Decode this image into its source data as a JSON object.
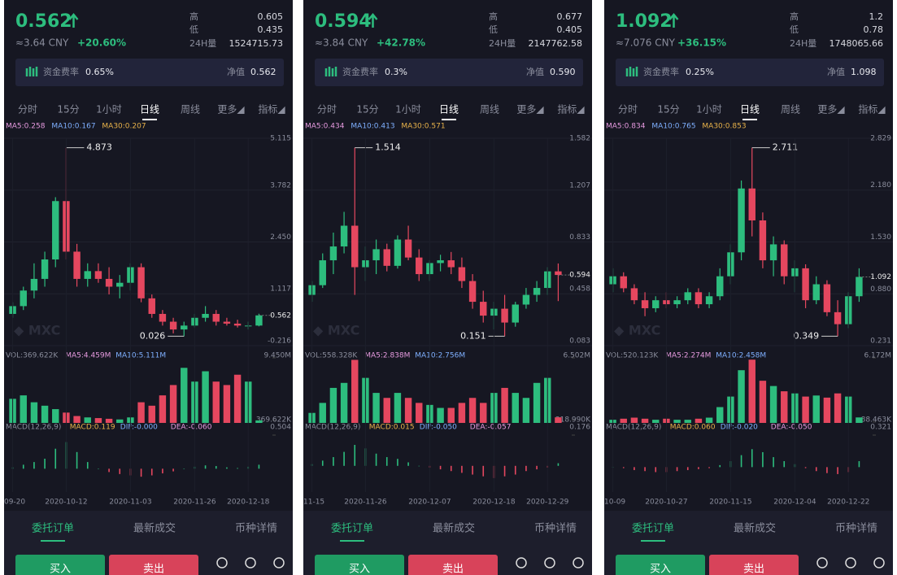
{
  "panels": [
    {
      "price": "0.562",
      "cny": "≈3.64 CNY",
      "change": "+20.60%",
      "high_label": "高",
      "high": "0.605",
      "low_label": "低",
      "low": "0.435",
      "vol_label": "24H量",
      "vol": "1524715.73",
      "funding_label": "资金费率",
      "funding": "0.65%",
      "nav_label": "净值",
      "nav": "0.562",
      "tabs": [
        "分时",
        "15分",
        "1小时",
        "日线",
        "周线",
        "更多◢",
        "指标◢"
      ],
      "bottom_tabs": [
        "委托订单",
        "最新成交",
        "币种详情"
      ],
      "buy": "买入",
      "sell": "卖出"
    },
    {
      "price": "0.594",
      "cny": "≈3.84 CNY",
      "change": "+42.78%",
      "high_label": "高",
      "high": "0.677",
      "low_label": "低",
      "low": "0.405",
      "vol_label": "24H量",
      "vol": "2147762.58",
      "funding_label": "资金费率",
      "funding": "0.3%",
      "nav_label": "净值",
      "nav": "0.590",
      "tabs": [
        "分时",
        "15分",
        "1小时",
        "日线",
        "周线",
        "更多◢",
        "指标◢"
      ],
      "bottom_tabs": [
        "委托订单",
        "最新成交",
        "币种详情"
      ],
      "buy": "买入",
      "sell": "卖出"
    },
    {
      "price": "1.092",
      "cny": "≈7.076 CNY",
      "change": "+36.15%",
      "high_label": "高",
      "high": "1.2",
      "low_label": "低",
      "low": "0.78",
      "vol_label": "24H量",
      "vol": "1748065.66",
      "funding_label": "资金费率",
      "funding": "0.25%",
      "nav_label": "净值",
      "nav": "1.098",
      "tabs": [
        "分时",
        "15分",
        "1小时",
        "日线",
        "周线",
        "更多◢",
        "指标◢"
      ],
      "bottom_tabs": [
        "委托订单",
        "最新成交",
        "币种详情"
      ],
      "buy": "买入",
      "sell": "卖出"
    }
  ],
  "chart_data": [
    {
      "type": "candlestick",
      "ma_legend": [
        "MA5:0.258",
        "MA10:0.167",
        "MA30:0.207"
      ],
      "open": [
        0.6,
        0.8,
        1.2,
        1.5,
        2.0,
        3.5,
        2.2,
        1.5,
        1.7,
        1.5,
        1.3,
        1.4,
        1.8,
        1.0,
        0.6,
        0.4,
        0.2,
        0.3,
        0.5,
        0.6,
        0.4,
        0.35,
        0.3,
        0.3
      ],
      "high": [
        0.9,
        1.3,
        1.9,
        2.2,
        3.6,
        4.873,
        2.4,
        1.9,
        1.9,
        1.8,
        1.6,
        1.9,
        1.9,
        1.1,
        0.7,
        0.5,
        0.4,
        0.6,
        0.8,
        0.7,
        0.5,
        0.45,
        0.4,
        0.605
      ],
      "low": [
        0.5,
        0.7,
        1.0,
        1.3,
        1.8,
        2.0,
        1.3,
        1.3,
        1.4,
        1.1,
        1.0,
        1.2,
        0.9,
        0.5,
        0.3,
        0.1,
        0.026,
        0.25,
        0.4,
        0.3,
        0.3,
        0.25,
        0.2,
        0.28
      ],
      "close": [
        0.8,
        1.2,
        1.5,
        2.0,
        3.5,
        2.2,
        1.5,
        1.7,
        1.5,
        1.3,
        1.4,
        1.8,
        1.0,
        0.6,
        0.4,
        0.2,
        0.3,
        0.5,
        0.6,
        0.4,
        0.35,
        0.3,
        0.3,
        0.562
      ],
      "max_index": 5,
      "min_index": 16,
      "ylim": [
        -0.216,
        5.115
      ],
      "yticks": [
        5.115,
        3.782,
        {
          "value": 2.45,
          "label": "2.450"
        },
        1.117,
        -0.216
      ],
      "xlim": [
        -0.5,
        23.5
      ],
      "xticks": [
        {
          "value": 0,
          "label": "09-20"
        },
        {
          "value": 5,
          "label": "2020-10-12"
        },
        {
          "value": 11,
          "label": "2020-11-03"
        },
        {
          "value": 17,
          "label": "2020-11-26"
        },
        {
          "value": 22,
          "label": "2020-12-18"
        }
      ],
      "volume": {
        "legend": [
          "VOL:369.622K",
          "MA5:4.459M",
          "MA10:5.111M"
        ],
        "values": [
          3500000,
          4000000,
          3000000,
          2500000,
          2000000,
          1500000,
          1000000,
          800000,
          700000,
          600000,
          500000,
          800000,
          3000000,
          2500000,
          4000000,
          5500000,
          8000000,
          6000000,
          7500000,
          6000000,
          5500000,
          7000000,
          6000000,
          369622
        ],
        "ylim": [
          0,
          9450000
        ],
        "yticks": [
          {
            "value": 9450000,
            "label": "9.450M"
          },
          {
            "value": 369622,
            "label": "369.622K"
          }
        ]
      },
      "macd": {
        "legend": [
          "MACD(12,26,9)",
          "MACD:0.119",
          "DIF:-0.000",
          "DEA:-0.060"
        ],
        "values": [
          0.02,
          0.06,
          0.1,
          0.15,
          0.3,
          0.4,
          0.25,
          0.1,
          0,
          -0.05,
          -0.08,
          -0.1,
          -0.12,
          -0.1,
          -0.07,
          -0.04,
          0,
          0.03,
          0.05,
          0.04,
          0.02,
          0.01,
          0.03,
          0.06
        ],
        "ylim": [
          -0.35,
          0.504
        ],
        "yticks": [
          0.504
        ]
      }
    },
    {
      "type": "candlestick",
      "ma_legend": [
        "MA5:0.434",
        "MA10:0.413",
        "MA30:0.571"
      ],
      "open": [
        0.45,
        0.52,
        0.7,
        0.8,
        0.95,
        0.65,
        0.7,
        0.78,
        0.66,
        0.85,
        0.72,
        0.6,
        0.68,
        0.7,
        0.65,
        0.55,
        0.4,
        0.3,
        0.35,
        0.25,
        0.38,
        0.45,
        0.5,
        0.62
      ],
      "high": [
        0.55,
        0.75,
        0.9,
        1.05,
        1.514,
        0.8,
        0.85,
        0.82,
        0.88,
        0.95,
        0.78,
        0.7,
        0.74,
        0.76,
        0.72,
        0.6,
        0.48,
        0.4,
        0.45,
        0.4,
        0.5,
        0.55,
        0.65,
        0.677
      ],
      "low": [
        0.4,
        0.5,
        0.6,
        0.75,
        0.45,
        0.55,
        0.6,
        0.62,
        0.64,
        0.7,
        0.55,
        0.55,
        0.62,
        0.6,
        0.5,
        0.35,
        0.25,
        0.2,
        0.151,
        0.22,
        0.35,
        0.4,
        0.45,
        0.405
      ],
      "close": [
        0.52,
        0.7,
        0.8,
        0.95,
        0.65,
        0.7,
        0.78,
        0.66,
        0.85,
        0.72,
        0.6,
        0.68,
        0.7,
        0.65,
        0.55,
        0.4,
        0.3,
        0.35,
        0.25,
        0.38,
        0.45,
        0.5,
        0.62,
        0.594
      ],
      "max_index": 4,
      "min_index": 18,
      "ylim": [
        0.083,
        1.582
      ],
      "yticks": [
        1.582,
        1.207,
        0.833,
        0.458,
        0.083
      ],
      "xlim": [
        -0.5,
        23.5
      ],
      "xticks": [
        {
          "value": 0,
          "label": "11-15"
        },
        {
          "value": 5,
          "label": "2020-11-26"
        },
        {
          "value": 11,
          "label": "2020-12-07"
        },
        {
          "value": 17,
          "label": "2020-12-18"
        },
        {
          "value": 22,
          "label": "2020-12-29"
        }
      ],
      "volume": {
        "legend": [
          "VOL:558.328K",
          "MA5:2.838M",
          "MA10:2.756M"
        ],
        "values": [
          1000000,
          2000000,
          3500000,
          4000000,
          6300000,
          4500000,
          3000000,
          2500000,
          3000000,
          2500000,
          2000000,
          1800000,
          1500000,
          1500000,
          2000000,
          2500000,
          2000000,
          3000000,
          3500000,
          3000000,
          2500000,
          4000000,
          4500000,
          558328
        ],
        "ylim": [
          0,
          6502000
        ],
        "yticks": [
          {
            "value": 6502000,
            "label": "6.502M"
          },
          {
            "value": 318990,
            "label": "318.990K"
          }
        ]
      },
      "macd": {
        "legend": [
          "MACD(12,26,9)",
          "MACD:0.015",
          "DIF:-0.050",
          "DEA:-0.057"
        ],
        "values": [
          0.01,
          0.03,
          0.05,
          0.08,
          0.12,
          0.1,
          0.07,
          0.05,
          0.04,
          0.02,
          0,
          -0.01,
          -0.02,
          -0.03,
          -0.04,
          -0.05,
          -0.06,
          -0.07,
          -0.06,
          -0.05,
          -0.03,
          -0.02,
          -0.01,
          0.015
        ],
        "ylim": [
          -0.15,
          0.176
        ],
        "yticks": [
          0.176
        ]
      }
    },
    {
      "type": "candlestick",
      "ma_legend": [
        "MA5:0.834",
        "MA10:0.765",
        "MA30:0.853"
      ],
      "open": [
        1.0,
        1.1,
        0.95,
        0.8,
        0.7,
        0.8,
        0.75,
        0.8,
        0.9,
        0.75,
        0.85,
        1.1,
        1.4,
        2.2,
        1.8,
        1.3,
        1.5,
        1.1,
        1.2,
        0.8,
        1.0,
        0.65,
        0.5,
        0.85
      ],
      "high": [
        1.2,
        1.15,
        1.0,
        0.9,
        0.85,
        0.9,
        0.85,
        0.95,
        0.95,
        0.9,
        1.2,
        1.5,
        2.3,
        2.711,
        1.9,
        1.6,
        1.55,
        1.3,
        1.25,
        1.1,
        1.05,
        0.8,
        0.9,
        1.2
      ],
      "low": [
        0.9,
        0.9,
        0.75,
        0.6,
        0.65,
        0.7,
        0.7,
        0.75,
        0.7,
        0.7,
        0.8,
        1.0,
        1.3,
        1.6,
        1.2,
        1.1,
        1.0,
        0.9,
        0.7,
        0.75,
        0.6,
        0.349,
        0.45,
        0.78
      ],
      "close": [
        1.1,
        0.95,
        0.8,
        0.7,
        0.8,
        0.75,
        0.8,
        0.9,
        0.75,
        0.85,
        1.1,
        1.4,
        2.2,
        1.8,
        1.3,
        1.5,
        1.1,
        1.2,
        0.8,
        1.0,
        0.65,
        0.5,
        0.85,
        1.092
      ],
      "max_index": 13,
      "min_index": 21,
      "ylim": [
        0.231,
        2.829
      ],
      "yticks": [
        2.829,
        {
          "value": 2.18,
          "label": "2.180"
        },
        {
          "value": 1.53,
          "label": "1.530"
        },
        {
          "value": 0.88,
          "label": "0.880"
        },
        0.231
      ],
      "xlim": [
        -0.5,
        23.5
      ],
      "xticks": [
        {
          "value": 0,
          "label": "10-09"
        },
        {
          "value": 5,
          "label": "2020-10-27"
        },
        {
          "value": 11,
          "label": "2020-11-15"
        },
        {
          "value": 17,
          "label": "2020-12-04"
        },
        {
          "value": 22,
          "label": "2020-12-22"
        }
      ],
      "volume": {
        "legend": [
          "VOL:520.123K",
          "MA5:2.274M",
          "MA10:2.458M"
        ],
        "values": [
          300000,
          400000,
          500000,
          400000,
          300000,
          400000,
          300000,
          300000,
          400000,
          500000,
          1500000,
          2500000,
          5000000,
          6000000,
          4000000,
          3500000,
          3000000,
          2800000,
          2500000,
          2600000,
          2400000,
          2800000,
          2500000,
          520123
        ],
        "ylim": [
          0,
          6172000
        ],
        "yticks": [
          {
            "value": 6172000,
            "label": "6.172M"
          },
          {
            "value": 88463,
            "label": "88.463K"
          }
        ]
      },
      "macd": {
        "legend": [
          "MACD(12,26,9)",
          "MACD:0.060",
          "DIF:-0.020",
          "DEA:-0.050"
        ],
        "values": [
          0,
          -0.01,
          -0.03,
          -0.04,
          -0.05,
          -0.05,
          -0.04,
          -0.03,
          -0.02,
          -0.01,
          0.02,
          0.06,
          0.12,
          0.18,
          0.15,
          0.1,
          0.06,
          0.03,
          -0.01,
          -0.04,
          -0.06,
          -0.07,
          -0.05,
          0.06
        ],
        "ylim": [
          -0.25,
          0.321
        ],
        "yticks": [
          0.321
        ]
      }
    }
  ]
}
